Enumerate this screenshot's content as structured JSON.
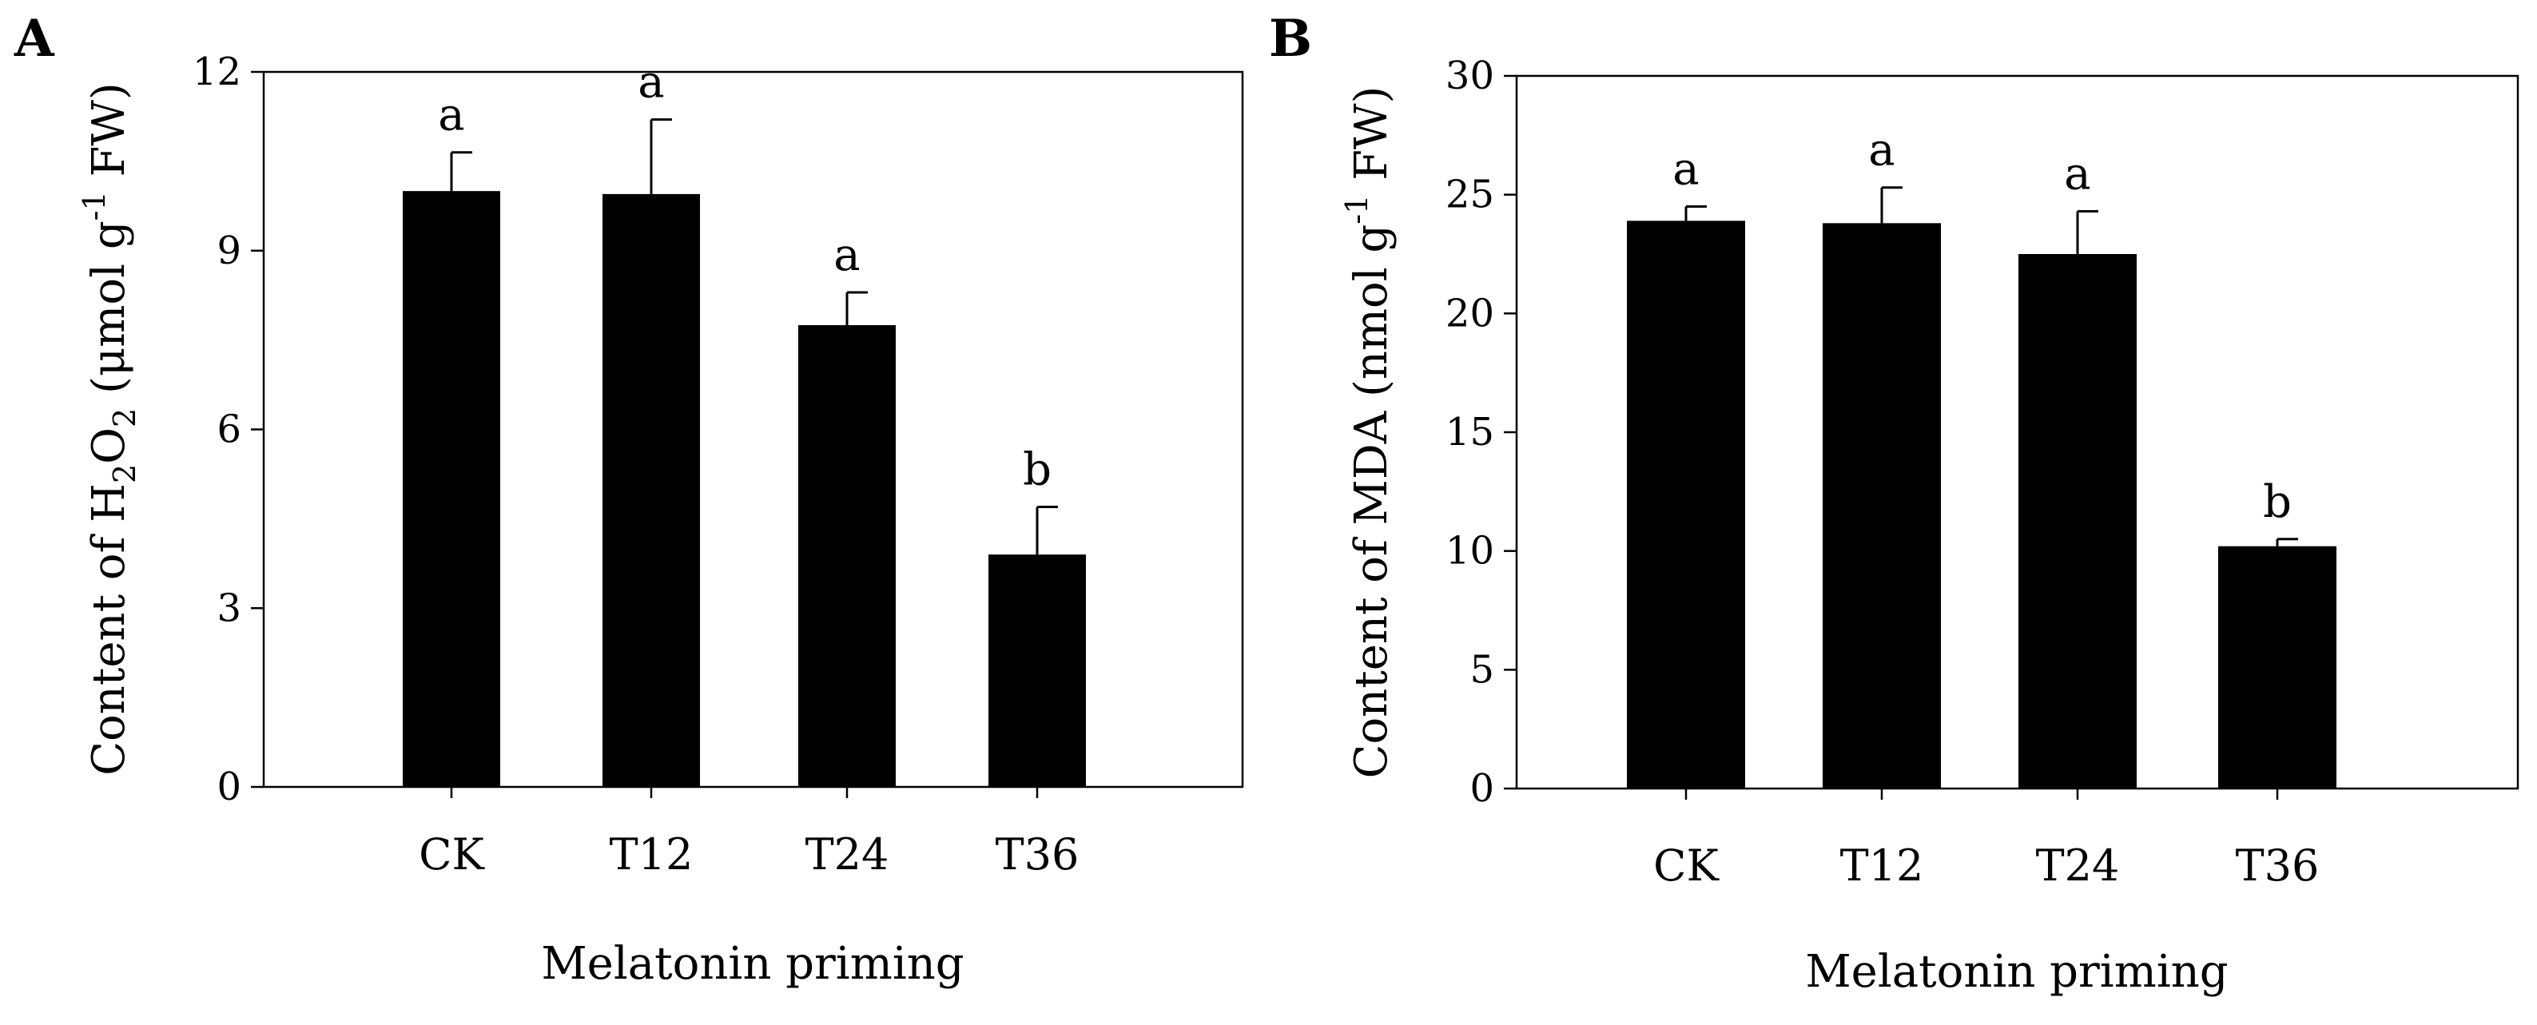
{
  "chart_data": [
    {
      "type": "bar",
      "panel_label": "A",
      "categories": [
        "CK",
        "T12",
        "T24",
        "T36"
      ],
      "values": [
        10.0,
        9.95,
        7.75,
        3.9
      ],
      "errors": [
        0.65,
        1.25,
        0.55,
        0.8
      ],
      "significance": [
        "a",
        "a",
        "a",
        "b"
      ],
      "xlabel": "Melatonin priming",
      "ylabel_parts": {
        "pre": "Content of H",
        "sub1": "2",
        "mid": "O",
        "sub2": "2",
        "post1": " (μmol g",
        "sup": "-1",
        "post2": " FW)"
      },
      "ylim": [
        0,
        12
      ],
      "yticks": [
        "0",
        "3",
        "6",
        "9",
        "12"
      ],
      "bar_color": "#000000",
      "grid": false
    },
    {
      "type": "bar",
      "panel_label": "B",
      "categories": [
        "CK",
        "T12",
        "T24",
        "T36"
      ],
      "values": [
        23.9,
        23.8,
        22.5,
        10.2
      ],
      "errors": [
        0.6,
        1.5,
        1.8,
        0.3
      ],
      "significance": [
        "a",
        "a",
        "a",
        "b"
      ],
      "xlabel": "Melatonin priming",
      "ylabel_parts": {
        "pre": "Content of MDA (nmol g",
        "sup": "-1",
        "post": " FW)"
      },
      "ylim": [
        0,
        30
      ],
      "yticks": [
        "0",
        "5",
        "10",
        "15",
        "20",
        "25",
        "30"
      ],
      "bar_color": "#000000",
      "grid": false
    }
  ]
}
